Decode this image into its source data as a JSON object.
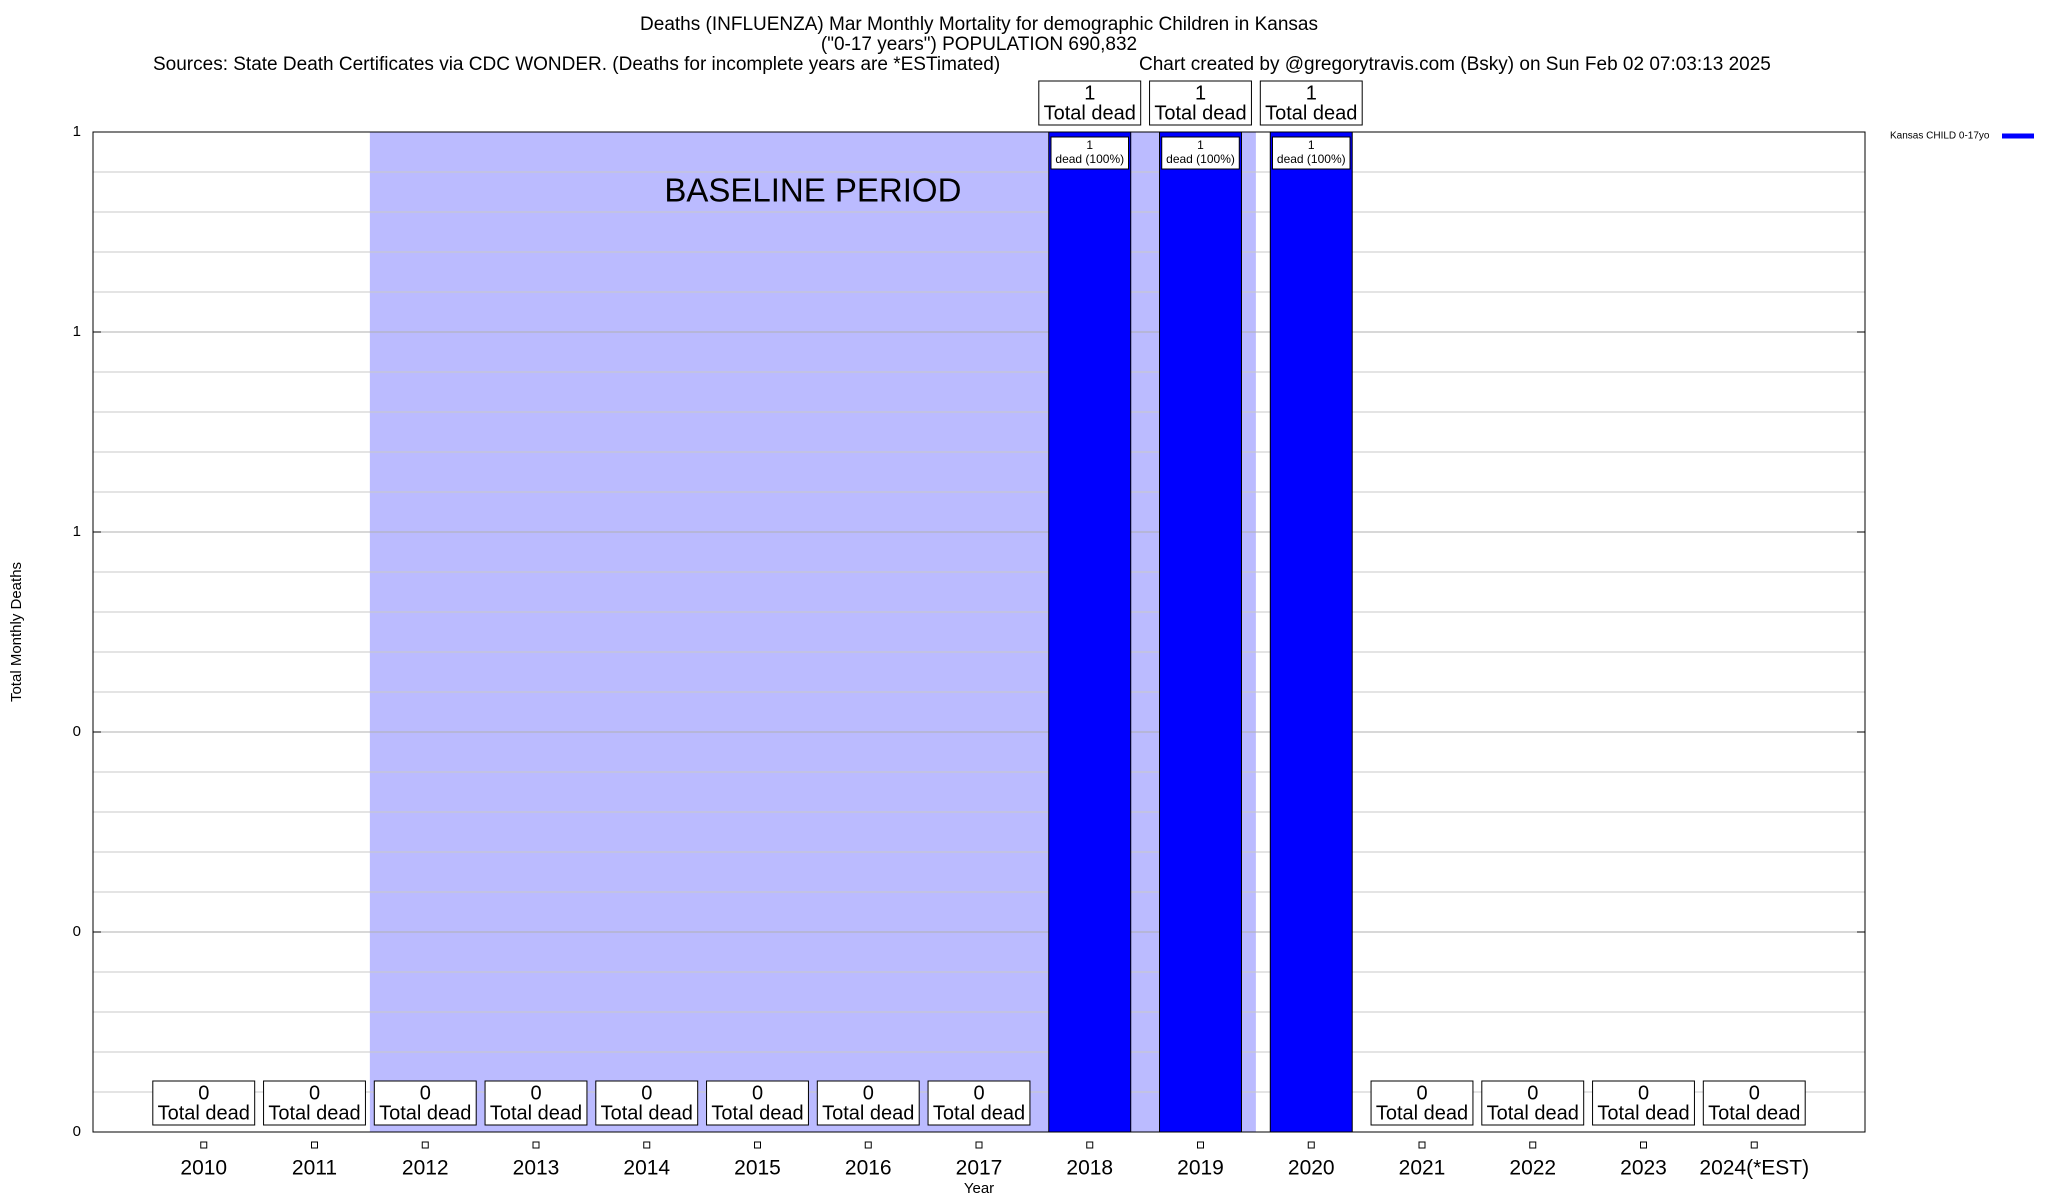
{
  "chart_data": {
    "type": "bar",
    "title": "Deaths (INFLUENZA) Mar Monthly Mortality for demographic Children in Kansas",
    "subtitle": "(\"0-17 years\") POPULATION 690,832",
    "source": "Sources: State Death Certificates via CDC WONDER. (Deaths for incomplete years are *ESTimated)",
    "credit": "Chart created by @gregorytravis.com (Bsky) on Sun Feb 02 07:03:13 2025",
    "x_label": "Year",
    "y_label": "Total Monthly Deaths",
    "categories": [
      "2010",
      "2011",
      "2012",
      "2013",
      "2014",
      "2015",
      "2016",
      "2017",
      "2018",
      "2019",
      "2020",
      "2021",
      "2022",
      "2023",
      "2024(*EST)"
    ],
    "series": [
      {
        "name": "Kansas CHILD 0-17yo",
        "color": "#0000ff",
        "values": [
          0,
          0,
          0,
          0,
          0,
          0,
          0,
          0,
          1,
          1,
          1,
          0,
          0,
          0,
          0
        ]
      }
    ],
    "total_label": "Total dead",
    "inner_labels": [
      null,
      null,
      null,
      null,
      null,
      null,
      null,
      null,
      "dead (100%)",
      "dead (100%)",
      "dead (100%)",
      null,
      null,
      null,
      null
    ],
    "baseline": {
      "label": "BASELINE PERIOD",
      "start": "2012",
      "end": "2019",
      "color": "#bbbbff"
    },
    "ylim": [
      0,
      1
    ],
    "yticks": [
      0,
      {
        "value": 0.2,
        "label": "0"
      },
      {
        "value": 0.4,
        "label": "0"
      },
      {
        "value": 0.6,
        "label": "1"
      },
      {
        "value": 0.8,
        "label": "1"
      },
      1
    ],
    "yminor": [
      0.04,
      0.08,
      0.12,
      0.16,
      0.24,
      0.28,
      0.32,
      0.36,
      0.44,
      0.48,
      0.52,
      0.56,
      0.64,
      0.68,
      0.72,
      0.76,
      0.84,
      0.88,
      0.92,
      0.96
    ],
    "grid": true,
    "legend": "top-right"
  }
}
